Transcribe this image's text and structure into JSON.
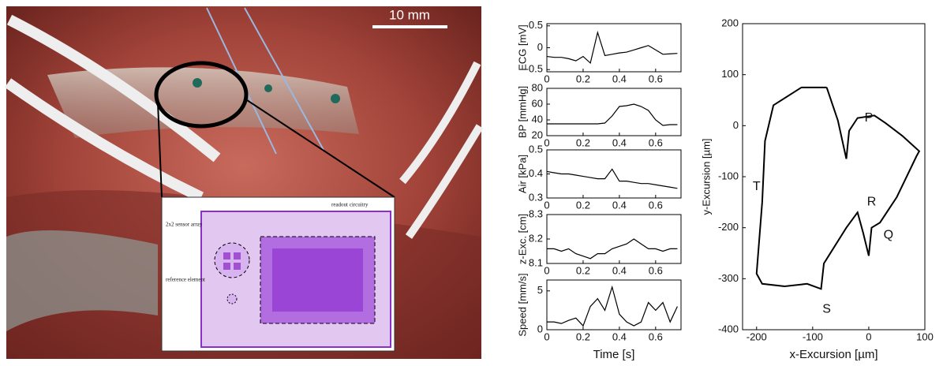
{
  "photo": {
    "scale_label": "10 mm",
    "chip_labels": [
      "2x2 sensor array",
      "readout circuitry",
      "reference element"
    ]
  },
  "chart_data": [
    {
      "type": "line",
      "y_label": "ECG [mV]",
      "x": [
        0,
        0.04,
        0.08,
        0.12,
        0.16,
        0.2,
        0.24,
        0.28,
        0.32,
        0.36,
        0.4,
        0.44,
        0.48,
        0.52,
        0.56,
        0.6,
        0.64,
        0.68,
        0.72
      ],
      "values": [
        -0.2,
        -0.22,
        -0.22,
        -0.25,
        -0.3,
        -0.2,
        -0.35,
        0.35,
        -0.18,
        -0.15,
        -0.12,
        -0.1,
        -0.05,
        0,
        0.05,
        -0.05,
        -0.15,
        -0.14,
        -0.13
      ],
      "xlim": [
        0,
        0.74
      ],
      "ylim": [
        -0.55,
        0.55
      ],
      "xticks": [
        0,
        0.2,
        0.4,
        0.6
      ],
      "yticks": [
        0.5,
        0,
        -0.5
      ],
      "color": "#000000"
    },
    {
      "type": "line",
      "y_label": "BP [mmHg]",
      "x": [
        0,
        0.04,
        0.08,
        0.12,
        0.16,
        0.2,
        0.24,
        0.28,
        0.32,
        0.36,
        0.4,
        0.44,
        0.48,
        0.52,
        0.56,
        0.6,
        0.64,
        0.68,
        0.72
      ],
      "values": [
        35,
        35,
        35,
        35,
        35,
        35,
        35,
        35,
        36,
        45,
        57,
        58,
        60,
        57,
        52,
        40,
        33,
        34,
        34
      ],
      "xlim": [
        0,
        0.74
      ],
      "ylim": [
        20,
        80
      ],
      "xticks": [
        0,
        0.2,
        0.4,
        0.6
      ],
      "yticks": [
        80,
        60,
        40,
        20
      ],
      "color": "#000000"
    },
    {
      "type": "line",
      "y_label": "Air [kPa]",
      "x": [
        0,
        0.04,
        0.08,
        0.12,
        0.16,
        0.2,
        0.24,
        0.28,
        0.32,
        0.36,
        0.4,
        0.44,
        0.48,
        0.52,
        0.56,
        0.6,
        0.64,
        0.68,
        0.72
      ],
      "values": [
        0.41,
        0.405,
        0.4,
        0.4,
        0.395,
        0.39,
        0.385,
        0.38,
        0.38,
        0.42,
        0.37,
        0.37,
        0.365,
        0.36,
        0.36,
        0.355,
        0.35,
        0.345,
        0.34
      ],
      "xlim": [
        0,
        0.74
      ],
      "ylim": [
        0.3,
        0.5
      ],
      "xticks": [
        0,
        0.2,
        0.4,
        0.6
      ],
      "yticks": [
        0.5,
        0.4,
        0.3
      ],
      "color": "#000000"
    },
    {
      "type": "line",
      "y_label": "z-Exc. [cm]",
      "x": [
        0,
        0.04,
        0.08,
        0.12,
        0.16,
        0.2,
        0.24,
        0.28,
        0.32,
        0.36,
        0.4,
        0.44,
        0.48,
        0.52,
        0.56,
        0.6,
        0.64,
        0.68,
        0.72
      ],
      "values": [
        8.16,
        8.16,
        8.15,
        8.16,
        8.14,
        8.13,
        8.12,
        8.14,
        8.14,
        8.16,
        8.17,
        8.18,
        8.2,
        8.18,
        8.16,
        8.16,
        8.15,
        8.16,
        8.16
      ],
      "xlim": [
        0,
        0.74
      ],
      "ylim": [
        8.1,
        8.3
      ],
      "xticks": [
        0,
        0.2,
        0.4,
        0.6
      ],
      "yticks": [
        8.3,
        8.2,
        8.1
      ],
      "color": "#000000"
    },
    {
      "type": "line",
      "y_label": "Speed [mm/s]",
      "x_label": "Time [s]",
      "x": [
        0,
        0.04,
        0.08,
        0.12,
        0.16,
        0.2,
        0.24,
        0.28,
        0.32,
        0.36,
        0.4,
        0.44,
        0.48,
        0.52,
        0.56,
        0.6,
        0.64,
        0.68,
        0.72
      ],
      "values": [
        1,
        1,
        0.8,
        1.2,
        1.5,
        0.5,
        3,
        4,
        2.5,
        5.5,
        2,
        1,
        0.5,
        1,
        3.5,
        2.5,
        3.5,
        1,
        3
      ],
      "xlim": [
        0,
        0.74
      ],
      "ylim": [
        0,
        6.4
      ],
      "xticks": [
        0,
        0.2,
        0.4,
        0.6
      ],
      "yticks": [
        5,
        0
      ],
      "color": "#000000"
    },
    {
      "type": "line",
      "x_label": "x-Excursion [µm]",
      "y_label": "y-Excursion [µm]",
      "x": [
        -75,
        -120,
        -170,
        -185,
        -190,
        -200,
        -190,
        -150,
        -110,
        -85,
        -80,
        -40,
        -20,
        -10,
        0,
        5,
        20,
        50,
        85,
        90,
        60,
        30,
        10,
        -20,
        -35,
        -40,
        -55,
        -75
      ],
      "values": [
        75,
        75,
        40,
        -30,
        -150,
        -290,
        -310,
        -315,
        -310,
        -320,
        -270,
        -200,
        -170,
        -210,
        -255,
        -200,
        -190,
        -140,
        -60,
        -50,
        -20,
        5,
        20,
        15,
        -10,
        -65,
        10,
        75
      ],
      "xlim": [
        -225,
        100
      ],
      "ylim": [
        -400,
        200
      ],
      "xticks": [
        -200,
        -100,
        0,
        100
      ],
      "yticks": [
        200,
        100,
        0,
        -100,
        -200,
        -300,
        -400
      ],
      "annotations": [
        "T",
        "P",
        "R",
        "Q",
        "S"
      ],
      "color": "#000000"
    }
  ]
}
